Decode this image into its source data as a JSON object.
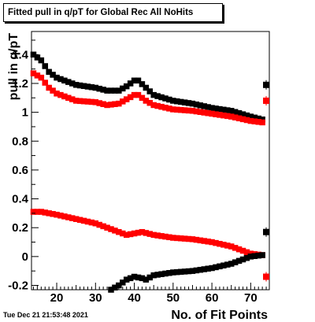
{
  "chart_data": {
    "type": "scatter",
    "title": "Fitted pull in q/pT for Global Rec All NoHits",
    "xlabel": "No. of Fit Points",
    "ylabel": "pull in q/pT",
    "xlim": [
      13.5,
      74.8
    ],
    "ylim": [
      -0.23,
      1.56
    ],
    "x_ticks": [
      20,
      30,
      40,
      50,
      60,
      70
    ],
    "y_ticks": [
      -0.2,
      0,
      0.2,
      0.4,
      0.6,
      0.8,
      1,
      1.2,
      1.4
    ],
    "x_tick_labels": [
      "20",
      "30",
      "40",
      "50",
      "60",
      "70"
    ],
    "y_tick_labels": [
      "-0.2",
      "0",
      "0.2",
      "0.4",
      "0.6",
      "0.8",
      "1",
      "1.2",
      "1.4"
    ],
    "grid": false,
    "legend": "none",
    "x_range": [
      14,
      73
    ],
    "series": [
      {
        "color": "#000000",
        "marker": "square",
        "anchors": [
          [
            14,
            1.4
          ],
          [
            16,
            1.36
          ],
          [
            18,
            1.28
          ],
          [
            20,
            1.24
          ],
          [
            25,
            1.19
          ],
          [
            30,
            1.17
          ],
          [
            33,
            1.15
          ],
          [
            36,
            1.15
          ],
          [
            38,
            1.18
          ],
          [
            40,
            1.22
          ],
          [
            41,
            1.22
          ],
          [
            43,
            1.17
          ],
          [
            45,
            1.12
          ],
          [
            50,
            1.08
          ],
          [
            55,
            1.06
          ],
          [
            60,
            1.03
          ],
          [
            65,
            1.01
          ],
          [
            70,
            0.97
          ],
          [
            73,
            0.95
          ]
        ],
        "overflow_marker": {
          "x": 74,
          "y": 1.19
        }
      },
      {
        "color": "#ff0000",
        "marker": "square",
        "anchors": [
          [
            14,
            1.27
          ],
          [
            16,
            1.24
          ],
          [
            18,
            1.17
          ],
          [
            20,
            1.13
          ],
          [
            25,
            1.08
          ],
          [
            30,
            1.07
          ],
          [
            33,
            1.05
          ],
          [
            36,
            1.06
          ],
          [
            38,
            1.09
          ],
          [
            40,
            1.12
          ],
          [
            41,
            1.12
          ],
          [
            43,
            1.08
          ],
          [
            45,
            1.05
          ],
          [
            50,
            1.02
          ],
          [
            55,
            1.01
          ],
          [
            60,
            0.99
          ],
          [
            65,
            0.97
          ],
          [
            70,
            0.94
          ],
          [
            73,
            0.93
          ]
        ],
        "overflow_marker": {
          "x": 74,
          "y": 1.08
        }
      },
      {
        "color": "#ff0000",
        "marker": "square",
        "anchors": [
          [
            14,
            0.31
          ],
          [
            16,
            0.31
          ],
          [
            20,
            0.29
          ],
          [
            25,
            0.26
          ],
          [
            30,
            0.23
          ],
          [
            35,
            0.18
          ],
          [
            38,
            0.15
          ],
          [
            40,
            0.16
          ],
          [
            42,
            0.17
          ],
          [
            45,
            0.15
          ],
          [
            50,
            0.13
          ],
          [
            55,
            0.12
          ],
          [
            60,
            0.1
          ],
          [
            65,
            0.07
          ],
          [
            70,
            0.02
          ],
          [
            73,
            0.01
          ]
        ],
        "overflow_marker": {
          "x": 74,
          "y": -0.14
        }
      },
      {
        "color": "#000000",
        "marker": "square",
        "anchors": [
          [
            34,
            -0.23
          ],
          [
            36,
            -0.2
          ],
          [
            38,
            -0.16
          ],
          [
            40,
            -0.14
          ],
          [
            42,
            -0.15
          ],
          [
            43,
            -0.16
          ],
          [
            45,
            -0.13
          ],
          [
            50,
            -0.11
          ],
          [
            55,
            -0.1
          ],
          [
            60,
            -0.08
          ],
          [
            65,
            -0.05
          ],
          [
            70,
            0.0
          ],
          [
            73,
            0.01
          ]
        ],
        "overflow_marker": {
          "x": 74,
          "y": 0.17
        }
      }
    ]
  },
  "footer": {
    "timestamp": "Tue Dec 21 21:53:48 2021"
  }
}
